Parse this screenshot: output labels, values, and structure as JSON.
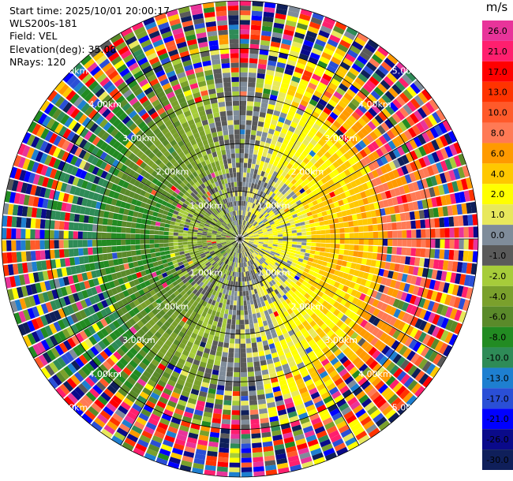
{
  "header": {
    "start_time": "Start time: 2025/10/01 20:00:17",
    "station": "WLS200s-181",
    "field": "Field: VEL",
    "elevation": "Elevation(deg): 35.00",
    "nrays": "NRays: 120"
  },
  "colorbar": {
    "unit": "m/s",
    "bins": [
      {
        "label": "26.0",
        "color": "#e8349a"
      },
      {
        "label": "21.0",
        "color": "#ff1f6e"
      },
      {
        "label": "17.0",
        "color": "#ff0000"
      },
      {
        "label": "13.0",
        "color": "#ff3300"
      },
      {
        "label": "10.0",
        "color": "#ff5a2a"
      },
      {
        "label": "8.0",
        "color": "#ff7a55"
      },
      {
        "label": "6.0",
        "color": "#ff9a00"
      },
      {
        "label": "4.0",
        "color": "#ffc800"
      },
      {
        "label": "2.0",
        "color": "#ffff00"
      },
      {
        "label": "1.0",
        "color": "#e8e85c"
      },
      {
        "label": "0.0",
        "color": "#7f8c9a"
      },
      {
        "label": "-1.0",
        "color": "#5a5a5a"
      },
      {
        "label": "-2.0",
        "color": "#a6cc3a"
      },
      {
        "label": "-4.0",
        "color": "#7aa02c"
      },
      {
        "label": "-6.0",
        "color": "#5a8a2a"
      },
      {
        "label": "-8.0",
        "color": "#228b22"
      },
      {
        "label": "-10.0",
        "color": "#2e8b57"
      },
      {
        "label": "-13.0",
        "color": "#1e7fd0"
      },
      {
        "label": "-17.0",
        "color": "#2a4fd6"
      },
      {
        "label": "-21.0",
        "color": "#0000ff"
      },
      {
        "label": "-26.0",
        "color": "#0a0a8a"
      },
      {
        "label": "-30.0",
        "color": "#0f1f5a"
      }
    ]
  },
  "chart_data": {
    "type": "heatmap",
    "projection": "polar PPI",
    "field": "VEL",
    "units": "m/s",
    "n_rays": 120,
    "max_range_km": 5.0,
    "range_rings_km": [
      1.0,
      2.0,
      3.0,
      4.0,
      5.0
    ],
    "ring_labels": [
      "1.00km",
      "2.00km",
      "3.00km",
      "4.00km",
      "5.00km"
    ],
    "spokes_deg": [
      0,
      30,
      60,
      90,
      120,
      150,
      180,
      210,
      240,
      270,
      300,
      330
    ],
    "velocity_pattern": {
      "east_sector_near_range_ms": 2.0,
      "east_sector_mid_range_ms": 5.0,
      "east_sector_far_range_ms": 9.0,
      "west_sector_near_range_ms": -2.0,
      "west_sector_mid_range_ms": -6.0,
      "west_sector_far_range_ms": -9.0,
      "far_range_noise": "random all-colors beyond ~3.6 km"
    }
  }
}
